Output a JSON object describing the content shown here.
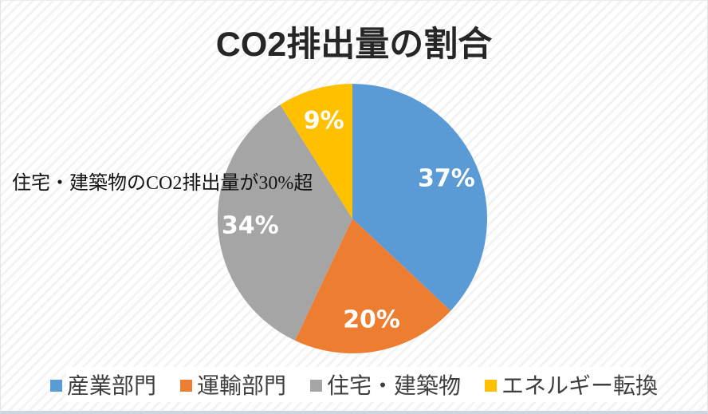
{
  "title": {
    "text": "CO2排出量の割合",
    "color": "#262626"
  },
  "annotation": {
    "text": "住宅・建築物のCO2排出量が30%超"
  },
  "chart_data": {
    "type": "pie",
    "title": "CO2排出量の割合",
    "annotation": "住宅・建築物のCO2排出量が30%超",
    "categories": [
      "産業部門",
      "運輸部門",
      "住宅・建築物",
      "エネルギー転換"
    ],
    "values": [
      37,
      20,
      34,
      9
    ],
    "labels": [
      "37%",
      "20%",
      "34%",
      "9%"
    ],
    "colors": [
      "#5b9bd5",
      "#ed7d31",
      "#a5a5a5",
      "#ffc000"
    ],
    "start_angle_deg": 0,
    "direction": "clockwise",
    "data_label_color": "#ffffff",
    "legend_position": "bottom",
    "background_stripe_color": "#f3f3f3",
    "bottom_strip_color": "#ccd6e0"
  },
  "legend": {
    "items": [
      {
        "label": "産業部門",
        "color": "#5b9bd5"
      },
      {
        "label": "運輸部門",
        "color": "#ed7d31"
      },
      {
        "label": "住宅・建築物",
        "color": "#a5a5a5"
      },
      {
        "label": "エネルギー転換",
        "color": "#ffc000"
      }
    ]
  }
}
